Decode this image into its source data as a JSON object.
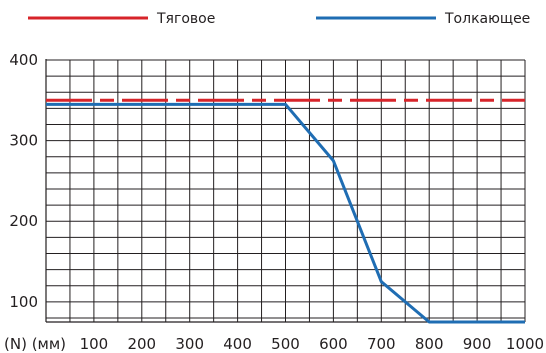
{
  "chart_data": {
    "type": "line",
    "x_unit_prefix": "(N) (мм)",
    "x_ticks": [
      "100",
      "200",
      "300",
      "400",
      "500",
      "600",
      "700",
      "800",
      "900",
      "1000"
    ],
    "y_ticks": [
      "100",
      "200",
      "300",
      "400"
    ],
    "xlim": [
      0,
      1000
    ],
    "ylim": [
      75,
      400
    ],
    "grid": true,
    "legend_position": "top",
    "series": [
      {
        "name": "Тяговое",
        "color": "#d7242a",
        "style": "dashed",
        "x": [
          0,
          1000
        ],
        "y": [
          350,
          350
        ]
      },
      {
        "name": "Толкающее",
        "color": "#1f6db3",
        "style": "solid",
        "x": [
          0,
          500,
          600,
          700,
          800,
          1000
        ],
        "y": [
          345,
          345,
          275,
          125,
          75,
          75
        ]
      }
    ]
  }
}
